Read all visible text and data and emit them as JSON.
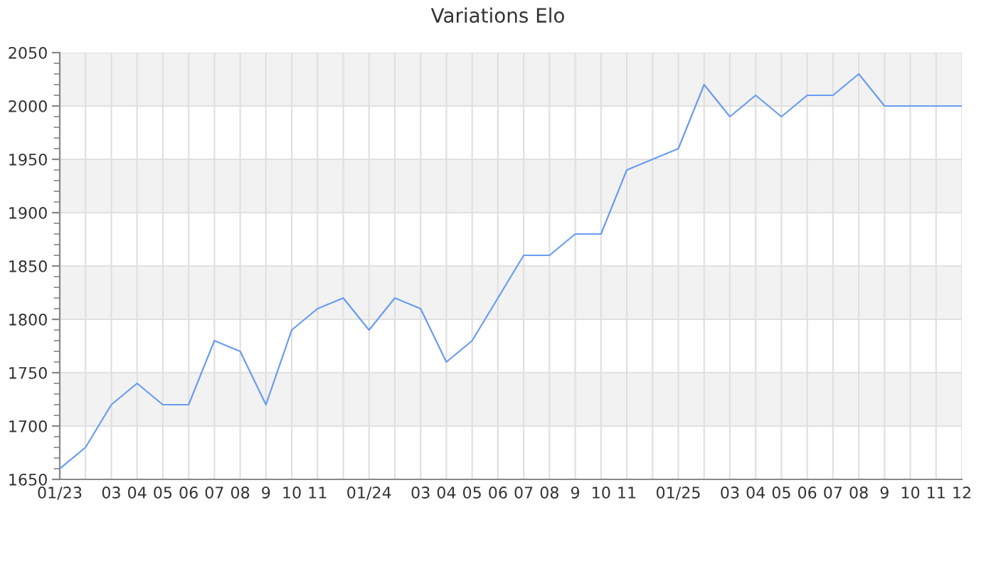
{
  "chart_data": {
    "type": "line",
    "title": "Variations Elo",
    "categories": [
      "01/23",
      null,
      "03",
      "04",
      "05",
      "06",
      "07",
      "08",
      "9",
      "10",
      "11",
      null,
      "01/24",
      null,
      "03",
      "04",
      "05",
      "06",
      "07",
      "08",
      "9",
      "10",
      "11",
      null,
      "01/25",
      null,
      "03",
      "04",
      "05",
      "06",
      "07",
      "08",
      "9",
      "10",
      "11",
      "12"
    ],
    "series": [
      {
        "color": "#6a9cf0",
        "values": [
          1660,
          1680,
          1720,
          1740,
          1720,
          1720,
          1780,
          1770,
          1720,
          1790,
          1810,
          1820,
          1790,
          1820,
          1810,
          1760,
          1780,
          1820,
          1860,
          1860,
          1880,
          1880,
          1940,
          1950,
          1960,
          2020,
          1990,
          2010,
          1990,
          2010,
          2010,
          2030,
          2000,
          2000,
          2000,
          2000
        ]
      }
    ],
    "ylim": [
      1650,
      2050
    ],
    "yticks": [
      1650,
      1700,
      1750,
      1800,
      1850,
      1900,
      1950,
      2000,
      2050
    ],
    "grid": true,
    "marker": "none",
    "line_style": "solid"
  }
}
